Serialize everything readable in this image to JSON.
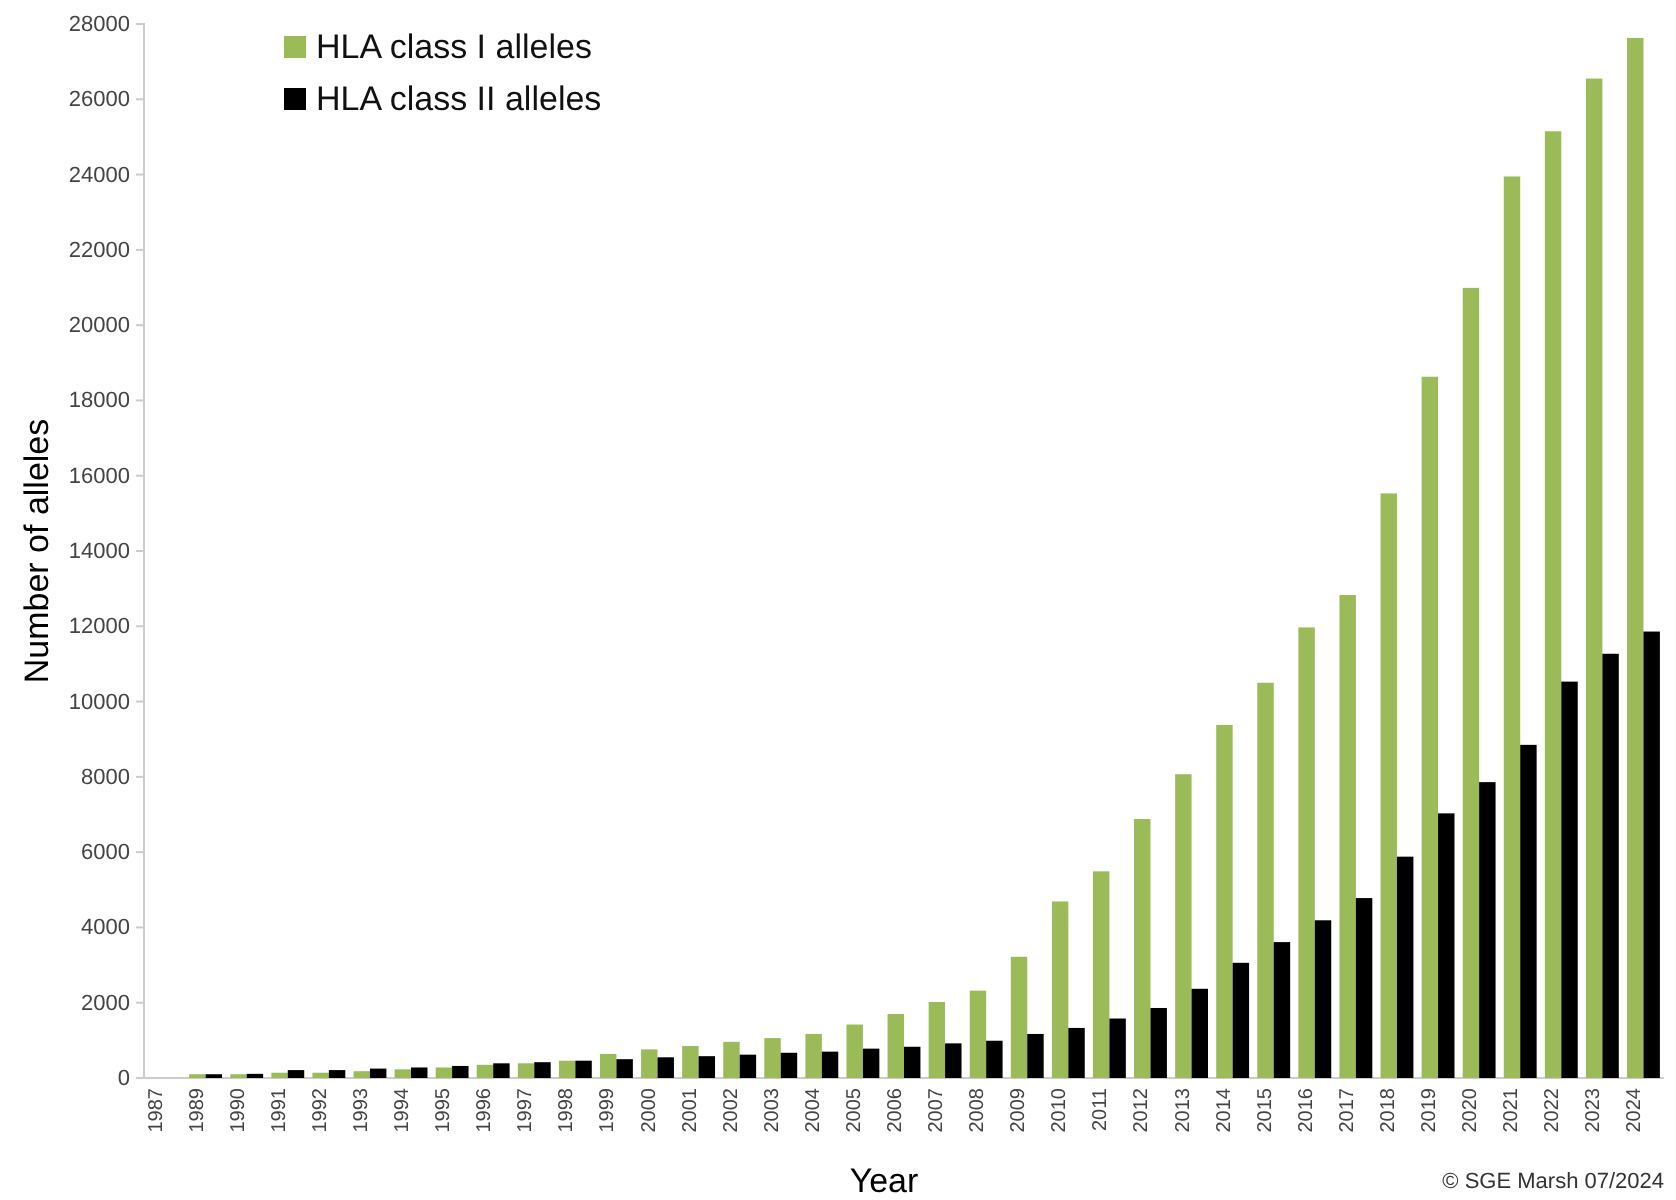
{
  "chart_data": {
    "type": "bar",
    "xlabel": "Year",
    "ylabel": "Number of alleles",
    "annotations": [
      "© SGE Marsh 07/2024"
    ],
    "categories": [
      "1987",
      "1989",
      "1990",
      "1991",
      "1992",
      "1993",
      "1994",
      "1995",
      "1996",
      "1997",
      "1998",
      "1999",
      "2000",
      "2001",
      "2002",
      "2003",
      "2004",
      "2005",
      "2006",
      "2007",
      "2008",
      "2009",
      "2010",
      "2011",
      "2012",
      "2013",
      "2014",
      "2015",
      "2016",
      "2017",
      "2018",
      "2019",
      "2020",
      "2021",
      "2022",
      "2023",
      "2024"
    ],
    "series": [
      {
        "name": "HLA class I alleles",
        "color": "#9bbb59",
        "values": [
          0,
          100,
          100,
          140,
          140,
          180,
          230,
          280,
          350,
          390,
          460,
          640,
          760,
          850,
          960,
          1060,
          1170,
          1420,
          1700,
          2020,
          2320,
          3220,
          4690,
          5490,
          6880,
          8070,
          9380,
          10500,
          11970,
          12830,
          15530,
          18630,
          20990,
          23950,
          25150,
          26550,
          27630
        ]
      },
      {
        "name": "HLA class II alleles",
        "color": "#000000",
        "values": [
          0,
          100,
          110,
          210,
          210,
          250,
          280,
          320,
          390,
          420,
          460,
          500,
          550,
          580,
          620,
          670,
          700,
          780,
          830,
          920,
          990,
          1170,
          1330,
          1580,
          1860,
          2370,
          3060,
          3610,
          4190,
          4780,
          5880,
          7030,
          7860,
          8850,
          10530,
          11270,
          11860
        ]
      }
    ],
    "ylim": [
      0,
      28000
    ],
    "yticks": [
      0,
      2000,
      4000,
      6000,
      8000,
      10000,
      12000,
      14000,
      16000,
      18000,
      20000,
      22000,
      24000,
      26000,
      28000
    ],
    "legend": "top left"
  }
}
